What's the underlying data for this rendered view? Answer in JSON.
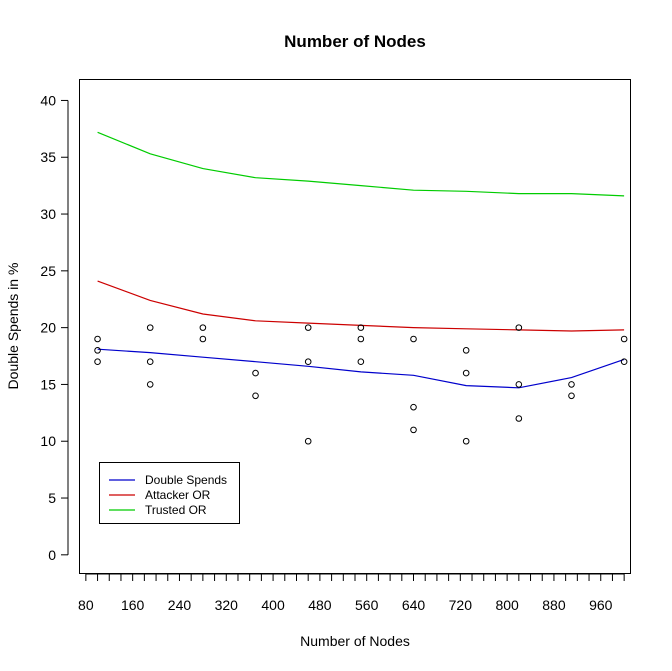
{
  "chart_data": {
    "type": "scatter",
    "title": "Number of Nodes",
    "xlabel": "Number of Nodes",
    "ylabel": "Double Spends in %",
    "xlim": [
      70,
      1010
    ],
    "ylim": [
      -1.6,
      41.8
    ],
    "x_ticks_labeled": [
      80,
      160,
      240,
      320,
      400,
      480,
      560,
      640,
      720,
      800,
      880,
      960
    ],
    "x_ticks_minor_step": 20,
    "x_ticks_minor_range": [
      80,
      1000
    ],
    "y_ticks": [
      0,
      5,
      10,
      15,
      20,
      25,
      30,
      35,
      40
    ],
    "grid": false,
    "legend_position": "bottom-left",
    "points": {
      "name": "Double Spends",
      "x": [
        100,
        100,
        100,
        190,
        190,
        190,
        280,
        280,
        370,
        370,
        460,
        460,
        460,
        550,
        550,
        550,
        640,
        640,
        640,
        730,
        730,
        730,
        820,
        820,
        820,
        910,
        910,
        1000,
        1000
      ],
      "y": [
        19,
        18,
        17,
        20,
        17,
        15,
        20,
        19,
        16,
        14,
        20,
        17,
        10,
        20,
        19,
        17,
        19,
        13,
        11,
        18,
        16,
        10,
        20,
        15,
        12,
        15,
        14,
        19,
        17
      ]
    },
    "series": [
      {
        "name": "Double Spends",
        "color": "#0000cc",
        "x": [
          100,
          190,
          280,
          370,
          460,
          550,
          640,
          730,
          820,
          910,
          1000
        ],
        "y": [
          18.1,
          17.8,
          17.4,
          17.0,
          16.6,
          16.1,
          15.8,
          14.9,
          14.7,
          15.6,
          17.2
        ]
      },
      {
        "name": "Attacker OR",
        "color": "#cc0000",
        "x": [
          100,
          190,
          280,
          370,
          460,
          550,
          640,
          730,
          820,
          910,
          1000
        ],
        "y": [
          24.1,
          22.4,
          21.2,
          20.6,
          20.4,
          20.2,
          20.0,
          19.9,
          19.8,
          19.7,
          19.8
        ]
      },
      {
        "name": "Trusted OR",
        "color": "#00cc00",
        "x": [
          100,
          190,
          280,
          370,
          460,
          550,
          640,
          730,
          820,
          910,
          1000
        ],
        "y": [
          37.2,
          35.3,
          34.0,
          33.2,
          32.9,
          32.5,
          32.1,
          32.0,
          31.8,
          31.8,
          31.6
        ]
      }
    ]
  }
}
